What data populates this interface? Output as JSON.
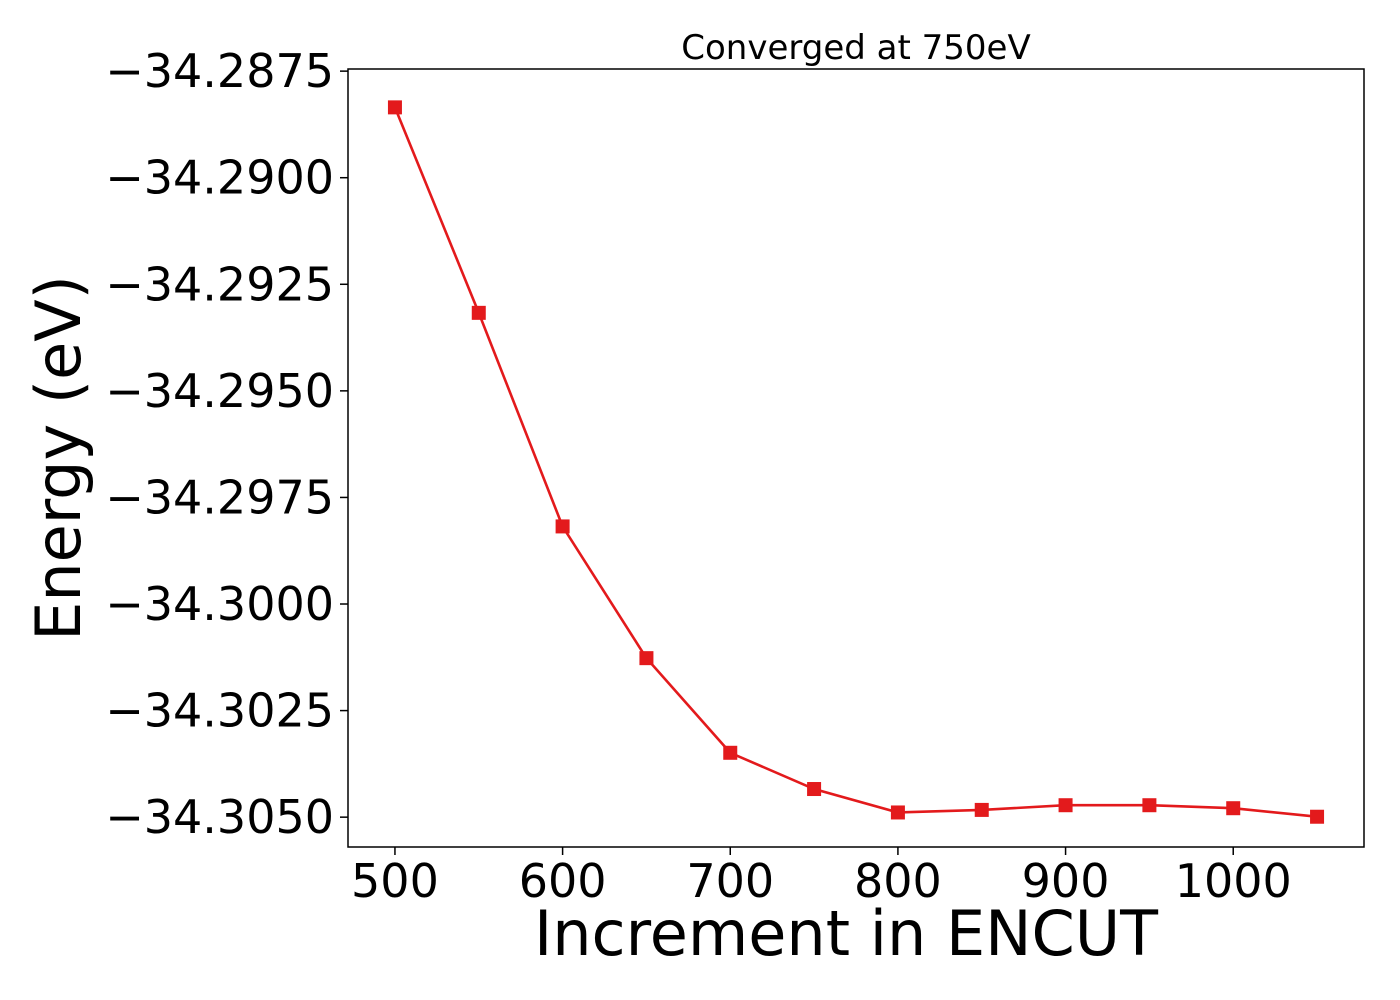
{
  "chart_data": {
    "type": "line",
    "title": "Converged at 750eV",
    "xlabel": "Increment in ENCUT",
    "ylabel": "Energy (eV)",
    "x": [
      500,
      550,
      600,
      650,
      700,
      750,
      800,
      850,
      900,
      950,
      1000,
      1050
    ],
    "series": [
      {
        "values": [
          -34.28835,
          -34.29317,
          -34.29818,
          -34.30127,
          -34.30349,
          -34.30434,
          -34.30489,
          -34.30483,
          -34.30472,
          -34.30472,
          -34.30479,
          -34.30499
        ],
        "color": "#e31a1c",
        "marker": "square"
      }
    ],
    "xlim": [
      472,
      1078
    ],
    "ylim": [
      -34.3057,
      -34.28745
    ],
    "xticks": [
      500,
      600,
      700,
      800,
      900,
      1000
    ],
    "xtick_labels": [
      "500",
      "600",
      "700",
      "800",
      "900",
      "1000"
    ],
    "yticks": [
      -34.2875,
      -34.29,
      -34.2925,
      -34.295,
      -34.2975,
      -34.3,
      -34.3025,
      -34.305
    ],
    "ytick_labels": [
      "−34.2875",
      "−34.2900",
      "−34.2925",
      "−34.2950",
      "−34.2975",
      "−34.3000",
      "−34.3025",
      "−34.3050"
    ],
    "grid": false,
    "legend": "none"
  }
}
